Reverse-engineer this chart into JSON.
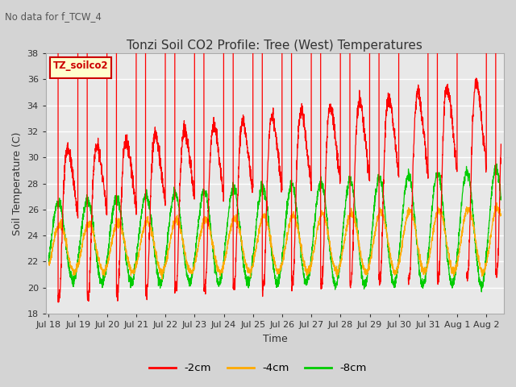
{
  "title": "Tonzi Soil CO2 Profile: Tree (West) Temperatures",
  "subtitle": "No data for f_TCW_4",
  "xlabel": "Time",
  "ylabel": "Soil Temperature (C)",
  "ylim": [
    18,
    38
  ],
  "yticks": [
    18,
    20,
    22,
    24,
    26,
    28,
    30,
    32,
    34,
    36,
    38
  ],
  "legend_title": "TZ_soilco2",
  "legend_entries": [
    "-2cm",
    "-4cm",
    "-8cm"
  ],
  "line_colors": [
    "#ff0000",
    "#ffaa00",
    "#00cc00"
  ],
  "fig_facecolor": "#d4d4d4",
  "ax_facecolor": "#e8e8e8",
  "x_tick_labels": [
    "Jul 18",
    "Jul 19",
    "Jul 20",
    "Jul 21",
    "Jul 22",
    "Jul 23",
    "Jul 24",
    "Jul 25",
    "Jul 26",
    "Jul 27",
    "Jul 28",
    "Jul 29",
    "Jul 30",
    "Jul 31",
    "Aug 1",
    "Aug 2"
  ],
  "n_days": 15.5
}
